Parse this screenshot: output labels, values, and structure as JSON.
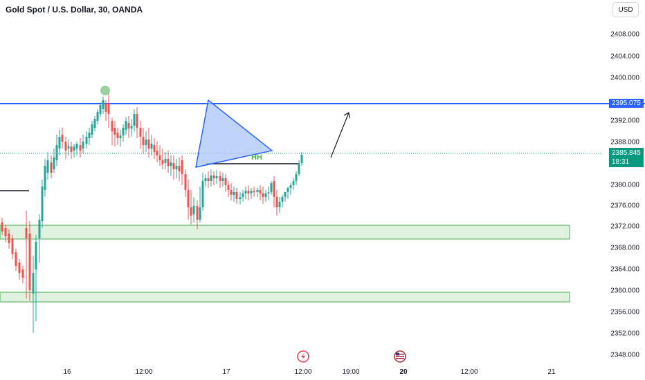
{
  "header": {
    "title": "Gold Spot / U.S. Dollar, 30, OANDA",
    "currency": "USD"
  },
  "price_axis": {
    "ticks": [
      "2408.000",
      "2404.000",
      "2400.000",
      "2392.000",
      "2388.000",
      "2380.000",
      "2376.000",
      "2372.000",
      "2368.000",
      "2364.000",
      "2360.000",
      "2356.000",
      "2352.000",
      "2348.000"
    ],
    "horizontal_line_label": "2395.075",
    "last_price_label": "2385.845",
    "countdown_label": "18:31"
  },
  "time_axis": {
    "ticks": [
      {
        "label": "16",
        "bold": false
      },
      {
        "label": "12:00",
        "bold": false
      },
      {
        "label": "17",
        "bold": false
      },
      {
        "label": "12:00",
        "bold": false
      },
      {
        "label": "19:00",
        "bold": false
      },
      {
        "label": "20",
        "bold": true
      },
      {
        "label": "12:00",
        "bold": false
      },
      {
        "label": "21",
        "bold": false
      }
    ]
  },
  "annotations": {
    "pattern_text": "HH",
    "hline_color": "#2962ff",
    "zone_color": "#4caf50"
  },
  "colors": {
    "up": "#089981",
    "down": "#f23645",
    "candle_up_fill": "#26a69a",
    "candle_down_fill": "#ef5350",
    "triangle_fill": "#a5c1f5",
    "triangle_stroke": "#2962ff"
  },
  "icons": [
    "lightning-event-icon",
    "us-flag-event-icon"
  ]
}
